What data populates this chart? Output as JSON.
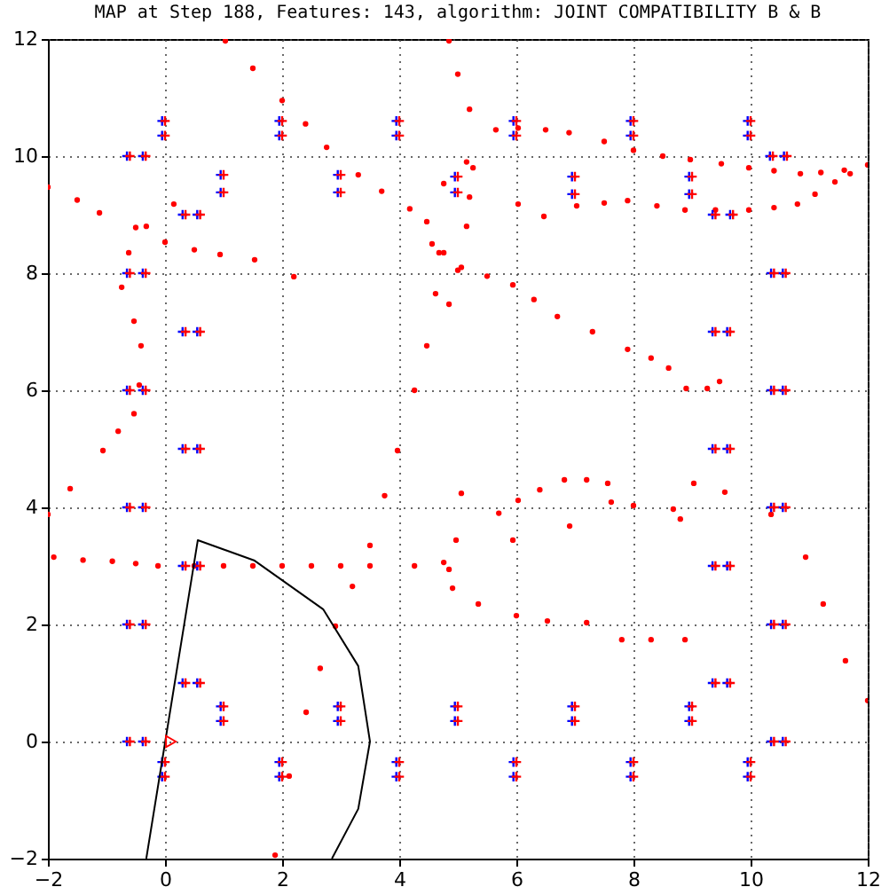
{
  "chart_data": {
    "type": "scatter",
    "title": "MAP at Step 188, Features: 143, algorithm: JOINT COMPATIBILITY B & B",
    "xlim": [
      -2,
      12
    ],
    "ylim": [
      -2,
      12
    ],
    "xticks": [
      -2,
      0,
      2,
      4,
      6,
      8,
      10,
      12
    ],
    "yticks": [
      -2,
      0,
      2,
      4,
      6,
      8,
      10,
      12
    ],
    "grid": true,
    "series": [
      {
        "marker": "circle",
        "color": "#ff0000",
        "x": [
          1.03,
          1.5,
          2.0,
          2.4,
          2.76,
          3.3,
          3.7,
          4.18,
          4.56,
          4.76,
          5.06,
          5.5,
          5.94,
          6.3,
          6.7,
          7.3,
          7.9,
          8.3,
          8.6,
          8.9,
          9.26,
          9.47,
          4.85,
          5.0,
          5.2,
          5.26,
          5.2,
          5.15,
          5.0,
          4.85,
          4.76,
          5.15,
          5.65,
          6.03,
          6.5,
          6.9,
          7.5,
          8.0,
          8.5,
          8.97,
          9.5,
          9.97,
          10.4,
          10.85,
          11.2,
          11.6,
          12.0,
          6.03,
          6.47,
          7.03,
          7.5,
          7.9,
          8.4,
          8.88,
          9.4,
          9.97,
          10.4,
          10.8,
          11.1,
          11.44,
          11.7,
          -2.0,
          -1.5,
          -1.12,
          -0.5,
          0.0,
          0.5,
          0.94,
          1.53,
          2.2,
          0.15,
          -0.32,
          -0.62,
          -0.74,
          -0.53,
          -0.41,
          -0.44,
          -0.53,
          -0.8,
          -1.06,
          -1.62,
          -2.0,
          4.47,
          4.68,
          4.62,
          4.47,
          4.26,
          3.97,
          3.75,
          3.5,
          3.2,
          2.91,
          2.65,
          2.41,
          2.12,
          1.88,
          -1.9,
          -1.4,
          -0.9,
          -0.5,
          -0.12,
          0.5,
          1.0,
          1.5,
          2.0,
          2.5,
          3.0,
          3.5,
          4.26,
          4.76,
          5.06,
          5.7,
          6.03,
          6.4,
          6.82,
          7.2,
          7.56,
          7.62,
          8.0,
          8.68,
          8.8,
          9.03,
          9.56,
          10.35,
          10.94,
          11.24,
          11.62,
          12.0,
          5.94,
          6.91,
          4.97,
          4.85,
          4.91,
          5.35,
          6.0,
          6.53,
          7.2,
          7.8,
          8.3,
          8.88
        ],
        "values": [
          11.97,
          11.5,
          10.95,
          10.55,
          10.15,
          9.68,
          9.4,
          9.1,
          8.5,
          8.35,
          8.1,
          7.95,
          7.8,
          7.55,
          7.26,
          7.0,
          6.7,
          6.55,
          6.38,
          6.03,
          6.03,
          6.15,
          11.97,
          11.4,
          10.8,
          9.8,
          9.3,
          8.8,
          8.05,
          7.47,
          9.53,
          9.9,
          10.45,
          10.48,
          10.45,
          10.4,
          10.25,
          10.1,
          10.0,
          9.94,
          9.87,
          9.8,
          9.75,
          9.7,
          9.72,
          9.76,
          9.85,
          9.18,
          8.97,
          9.15,
          9.2,
          9.24,
          9.15,
          9.08,
          9.08,
          9.08,
          9.12,
          9.18,
          9.35,
          9.56,
          9.7,
          9.47,
          9.25,
          9.03,
          8.78,
          8.53,
          8.4,
          8.32,
          8.23,
          7.94,
          9.18,
          8.8,
          8.35,
          7.76,
          7.18,
          6.76,
          6.09,
          5.6,
          5.3,
          4.97,
          4.32,
          3.88,
          8.88,
          8.35,
          7.65,
          6.76,
          6.0,
          4.97,
          4.2,
          3.35,
          2.65,
          1.97,
          1.25,
          0.5,
          -0.59,
          -1.94,
          3.15,
          3.1,
          3.08,
          3.04,
          3.0,
          3.0,
          3.0,
          3.0,
          3.0,
          3.0,
          3.0,
          3.0,
          3.0,
          3.06,
          4.24,
          3.9,
          4.12,
          4.3,
          4.47,
          4.47,
          4.41,
          4.09,
          4.03,
          3.97,
          3.8,
          4.41,
          4.26,
          3.88,
          3.15,
          2.35,
          1.38,
          0.7,
          3.44,
          3.68,
          3.44,
          2.94,
          2.62,
          2.35,
          2.15,
          2.06,
          2.03,
          1.74,
          1.74,
          1.74
        ]
      },
      {
        "marker": "cross",
        "color": "#0000ff",
        "x": [
          -0.05,
          -0.05,
          -0.65,
          -0.38,
          0.95,
          0.95,
          0.3,
          0.55,
          -0.65,
          -0.38,
          0.3,
          0.55,
          -0.65,
          -0.38,
          0.3,
          0.55,
          1.95,
          1.95,
          2.95,
          2.95,
          3.95,
          3.95,
          5.95,
          5.95,
          6.95,
          6.95,
          7.95,
          7.95,
          8.95,
          8.95,
          9.95,
          9.95,
          10.33,
          10.57,
          9.35,
          9.65,
          10.35,
          10.55,
          9.35,
          9.6,
          10.35,
          10.55,
          9.35,
          9.6,
          4.95,
          4.95,
          -0.65,
          -0.38,
          0.3,
          0.55,
          -0.65,
          -0.38,
          0.3,
          0.55,
          0.95,
          0.95,
          2.95,
          2.95,
          -0.65,
          -0.38,
          -0.05,
          -0.05,
          1.95,
          1.95,
          3.95,
          3.95,
          10.35,
          10.55,
          9.35,
          9.6,
          10.35,
          10.55,
          9.35,
          9.6,
          4.95,
          4.95,
          6.95,
          6.95,
          8.95,
          8.95,
          10.35,
          10.55,
          5.95,
          5.95,
          7.95,
          7.95,
          9.95,
          9.95
        ],
        "values": [
          10.6,
          10.35,
          10,
          10,
          9.68,
          9.38,
          9,
          9,
          8,
          8,
          7,
          7,
          6,
          6,
          5,
          5,
          10.6,
          10.35,
          9.68,
          9.38,
          10.6,
          10.35,
          10.6,
          10.35,
          9.65,
          9.35,
          10.6,
          10.35,
          9.65,
          9.35,
          10.6,
          10.35,
          10,
          10,
          9,
          9,
          8,
          8,
          7,
          7,
          6,
          6,
          5,
          5,
          9.65,
          9.38,
          4,
          4,
          3,
          3,
          2,
          2,
          1,
          1,
          0.6,
          0.35,
          0.6,
          0.35,
          0,
          0,
          -0.35,
          -0.6,
          -0.35,
          -0.6,
          -0.35,
          -0.6,
          4,
          4,
          3,
          3,
          2,
          2,
          1,
          1,
          0.6,
          0.35,
          0.6,
          0.35,
          0.6,
          0.35,
          0,
          0,
          -0.35,
          -0.6,
          -0.35,
          -0.6,
          -0.35,
          -0.6
        ]
      },
      {
        "marker": "cross",
        "color": "#ff0000",
        "x": [
          0,
          0,
          -0.6,
          -0.33,
          1,
          1,
          0.35,
          0.6,
          -0.6,
          -0.33,
          0.35,
          0.6,
          -0.6,
          -0.33,
          0.35,
          0.6,
          2,
          2,
          3,
          3,
          4,
          4,
          6,
          6,
          7,
          7,
          8,
          8,
          9,
          9,
          10,
          10,
          10.38,
          10.62,
          9.4,
          9.7,
          10.4,
          10.6,
          9.4,
          9.65,
          10.4,
          10.6,
          9.4,
          9.65,
          5,
          5,
          -0.6,
          -0.33,
          0.35,
          0.6,
          -0.6,
          -0.33,
          0.35,
          0.6,
          1,
          1,
          3,
          3,
          -0.6,
          -0.33,
          0,
          0,
          2,
          2,
          4,
          4,
          10.4,
          10.6,
          9.4,
          9.65,
          10.4,
          10.6,
          9.4,
          9.65,
          5,
          5,
          7,
          7,
          9,
          9,
          10.4,
          10.6,
          6,
          6,
          8,
          8,
          10,
          10
        ],
        "values": [
          10.6,
          10.35,
          10,
          10,
          9.68,
          9.38,
          9,
          9,
          8,
          8,
          7,
          7,
          6,
          6,
          5,
          5,
          10.6,
          10.35,
          9.68,
          9.38,
          10.6,
          10.35,
          10.6,
          10.35,
          9.65,
          9.35,
          10.6,
          10.35,
          9.65,
          9.35,
          10.6,
          10.35,
          10,
          10,
          9,
          9,
          8,
          8,
          7,
          7,
          6,
          6,
          5,
          5,
          9.65,
          9.38,
          4,
          4,
          3,
          3,
          2,
          2,
          1,
          1,
          0.6,
          0.35,
          0.6,
          0.35,
          0,
          0,
          -0.35,
          -0.6,
          -0.35,
          -0.6,
          -0.35,
          -0.6,
          4,
          4,
          3,
          3,
          2,
          2,
          1,
          1,
          0.6,
          0.35,
          0.6,
          0.35,
          0.6,
          0.35,
          0,
          0,
          -0.35,
          -0.6,
          -0.35,
          -0.6,
          -0.35,
          -0.6
        ]
      },
      {
        "type": "line",
        "marker": "none",
        "color": "#000000",
        "x": [
          -0.32,
          0.56,
          1.53,
          2.7,
          3.3,
          3.5,
          3.3,
          2.85
        ],
        "values": [
          -2,
          3.44,
          3.09,
          2.26,
          1.29,
          0,
          -1.15,
          -2
        ]
      },
      {
        "marker": "triangle",
        "color": "#ff0000",
        "x": [
          0.1
        ],
        "values": [
          0
        ]
      }
    ]
  }
}
